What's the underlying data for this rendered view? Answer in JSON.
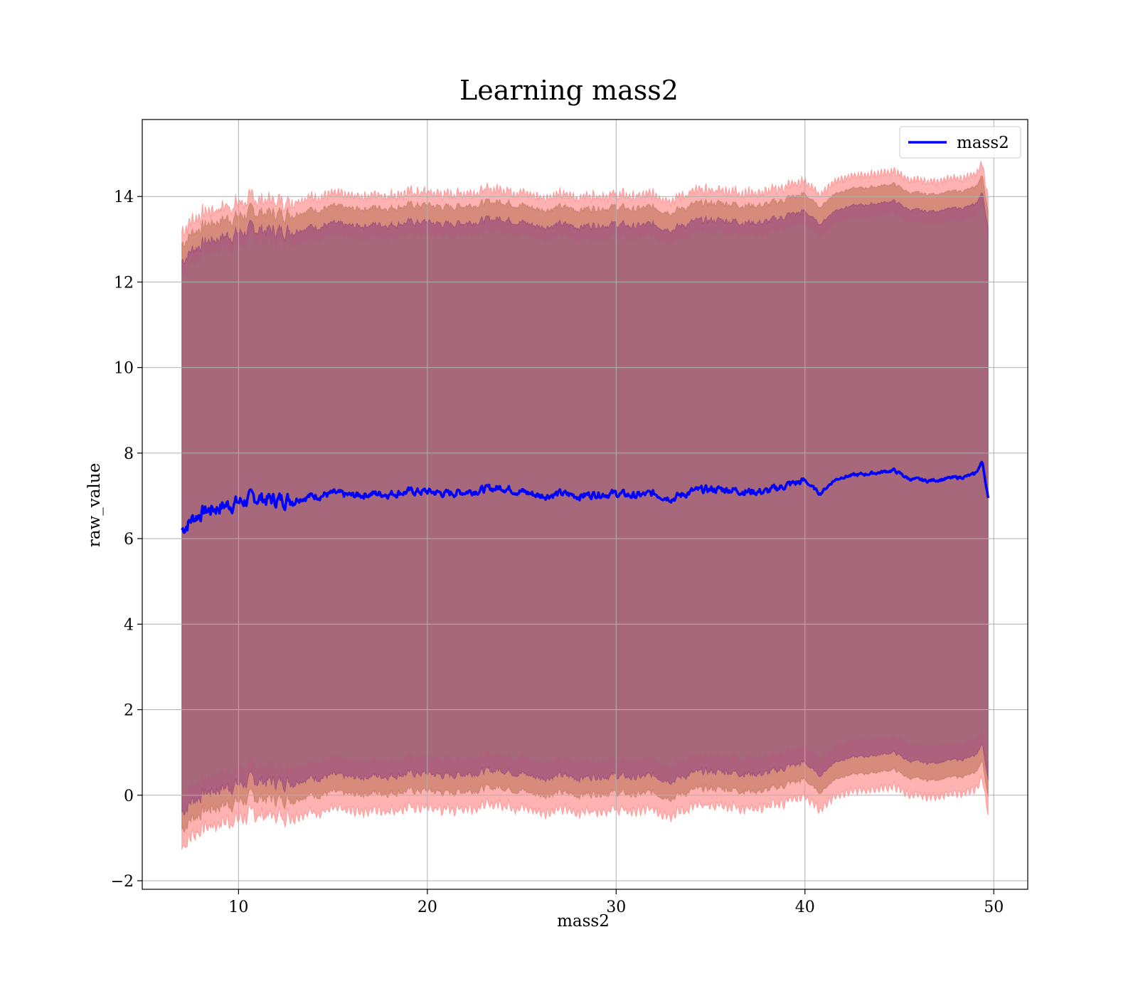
{
  "chart_data": {
    "type": "line",
    "title": "Learning mass2",
    "xlabel": "mass2",
    "ylabel": "raw_value",
    "xlim": [
      4.9,
      51.8
    ],
    "ylim": [
      -2.2,
      15.8
    ],
    "xticks": [
      10,
      20,
      30,
      40,
      50
    ],
    "yticks": [
      -2,
      0,
      2,
      4,
      6,
      8,
      10,
      12,
      14
    ],
    "grid": true,
    "legend": {
      "placement": "top-right",
      "entries": [
        "mass2"
      ]
    },
    "colors": {
      "line": "#0000ff",
      "band_outer": "#ff0000",
      "band_middle": "#8b4513",
      "band_inner": "#4b0082",
      "band_core": "#a07078"
    },
    "series": [
      {
        "name": "mass2",
        "x": [
          7.0,
          7.5,
          8.0,
          9.0,
          10.0,
          11.0,
          12.0,
          13.0,
          14.0,
          15.0,
          16.0,
          17.0,
          18.0,
          19.0,
          20.0,
          21.0,
          22.0,
          23.0,
          24.0,
          25.0,
          26.0,
          27.0,
          28.0,
          29.0,
          30.0,
          31.0,
          32.0,
          33.0,
          34.0,
          35.0,
          36.0,
          37.0,
          38.0,
          39.0,
          40.0,
          40.8,
          41.5,
          42.0,
          43.0,
          44.0,
          44.7,
          45.5,
          46.5,
          47.5,
          48.5,
          49.0,
          49.4,
          49.7
        ],
        "y": [
          6.2,
          6.45,
          6.6,
          6.75,
          6.85,
          6.95,
          6.9,
          6.95,
          7.0,
          7.05,
          7.0,
          7.05,
          7.05,
          7.1,
          7.1,
          7.05,
          7.1,
          7.15,
          7.2,
          7.1,
          7.0,
          7.05,
          7.0,
          7.05,
          7.05,
          7.0,
          7.05,
          6.95,
          7.1,
          7.15,
          7.15,
          7.1,
          7.1,
          7.25,
          7.35,
          7.05,
          7.35,
          7.45,
          7.5,
          7.55,
          7.6,
          7.4,
          7.35,
          7.4,
          7.45,
          7.5,
          7.8,
          6.95
        ]
      }
    ],
    "bands": [
      {
        "offset_upper": 7.0,
        "offset_lower": 7.4
      },
      {
        "offset_upper": 6.7,
        "offset_lower": 7.0
      },
      {
        "offset_upper": 6.3,
        "offset_lower": 6.6
      },
      {
        "offset_upper": 6.0,
        "offset_lower": 6.2
      }
    ]
  }
}
